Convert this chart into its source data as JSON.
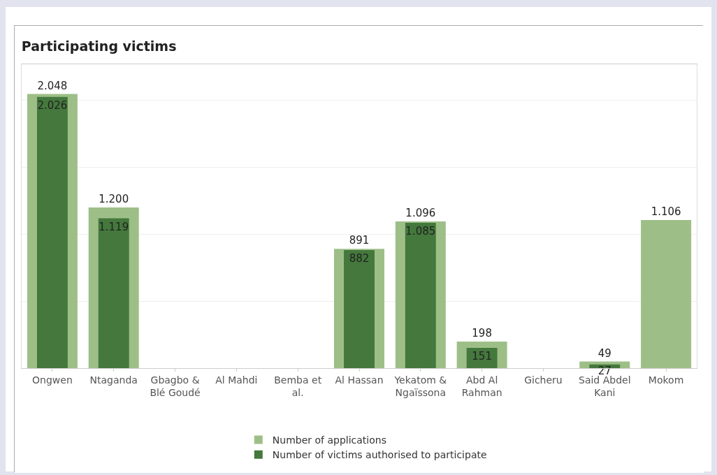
{
  "chart_data": {
    "type": "bar",
    "title": "Participating victims",
    "categories": [
      "Ongwen",
      "Ntaganda",
      "Gbagbo & Blé Goudé",
      "Al Mahdi",
      "Bemba et al.",
      "Al Hassan",
      "Yekatom & Ngaïssona",
      "Abd Al Rahman",
      "Gicheru",
      "Said Abdel Kani",
      "Mokom"
    ],
    "series": [
      {
        "name": "Number of applications",
        "color": "#9dbf87",
        "values": [
          2048,
          1200,
          null,
          null,
          null,
          891,
          1096,
          198,
          null,
          49,
          1106
        ],
        "value_labels": [
          "2.048",
          "1.200",
          null,
          null,
          null,
          "891",
          "1.096",
          "198",
          null,
          "49",
          "1.106"
        ]
      },
      {
        "name": "Number of victims authorised to participate",
        "color": "#44783c",
        "values": [
          2026,
          1119,
          null,
          null,
          null,
          882,
          1085,
          151,
          null,
          27,
          null
        ],
        "value_labels": [
          "2.026",
          "1.119",
          null,
          null,
          null,
          "882",
          "1.085",
          "151",
          null,
          "27",
          null
        ]
      }
    ],
    "ylim": [
      0,
      2270
    ],
    "yticks": [
      {
        "value": 0,
        "label": null
      },
      {
        "value": 500,
        "label": null
      },
      {
        "value": 1000,
        "label": null
      },
      {
        "value": 1500,
        "label": null
      },
      {
        "value": 2000,
        "label": null
      }
    ],
    "tick_labels": "x",
    "grid": "y",
    "legend": "bottom"
  }
}
